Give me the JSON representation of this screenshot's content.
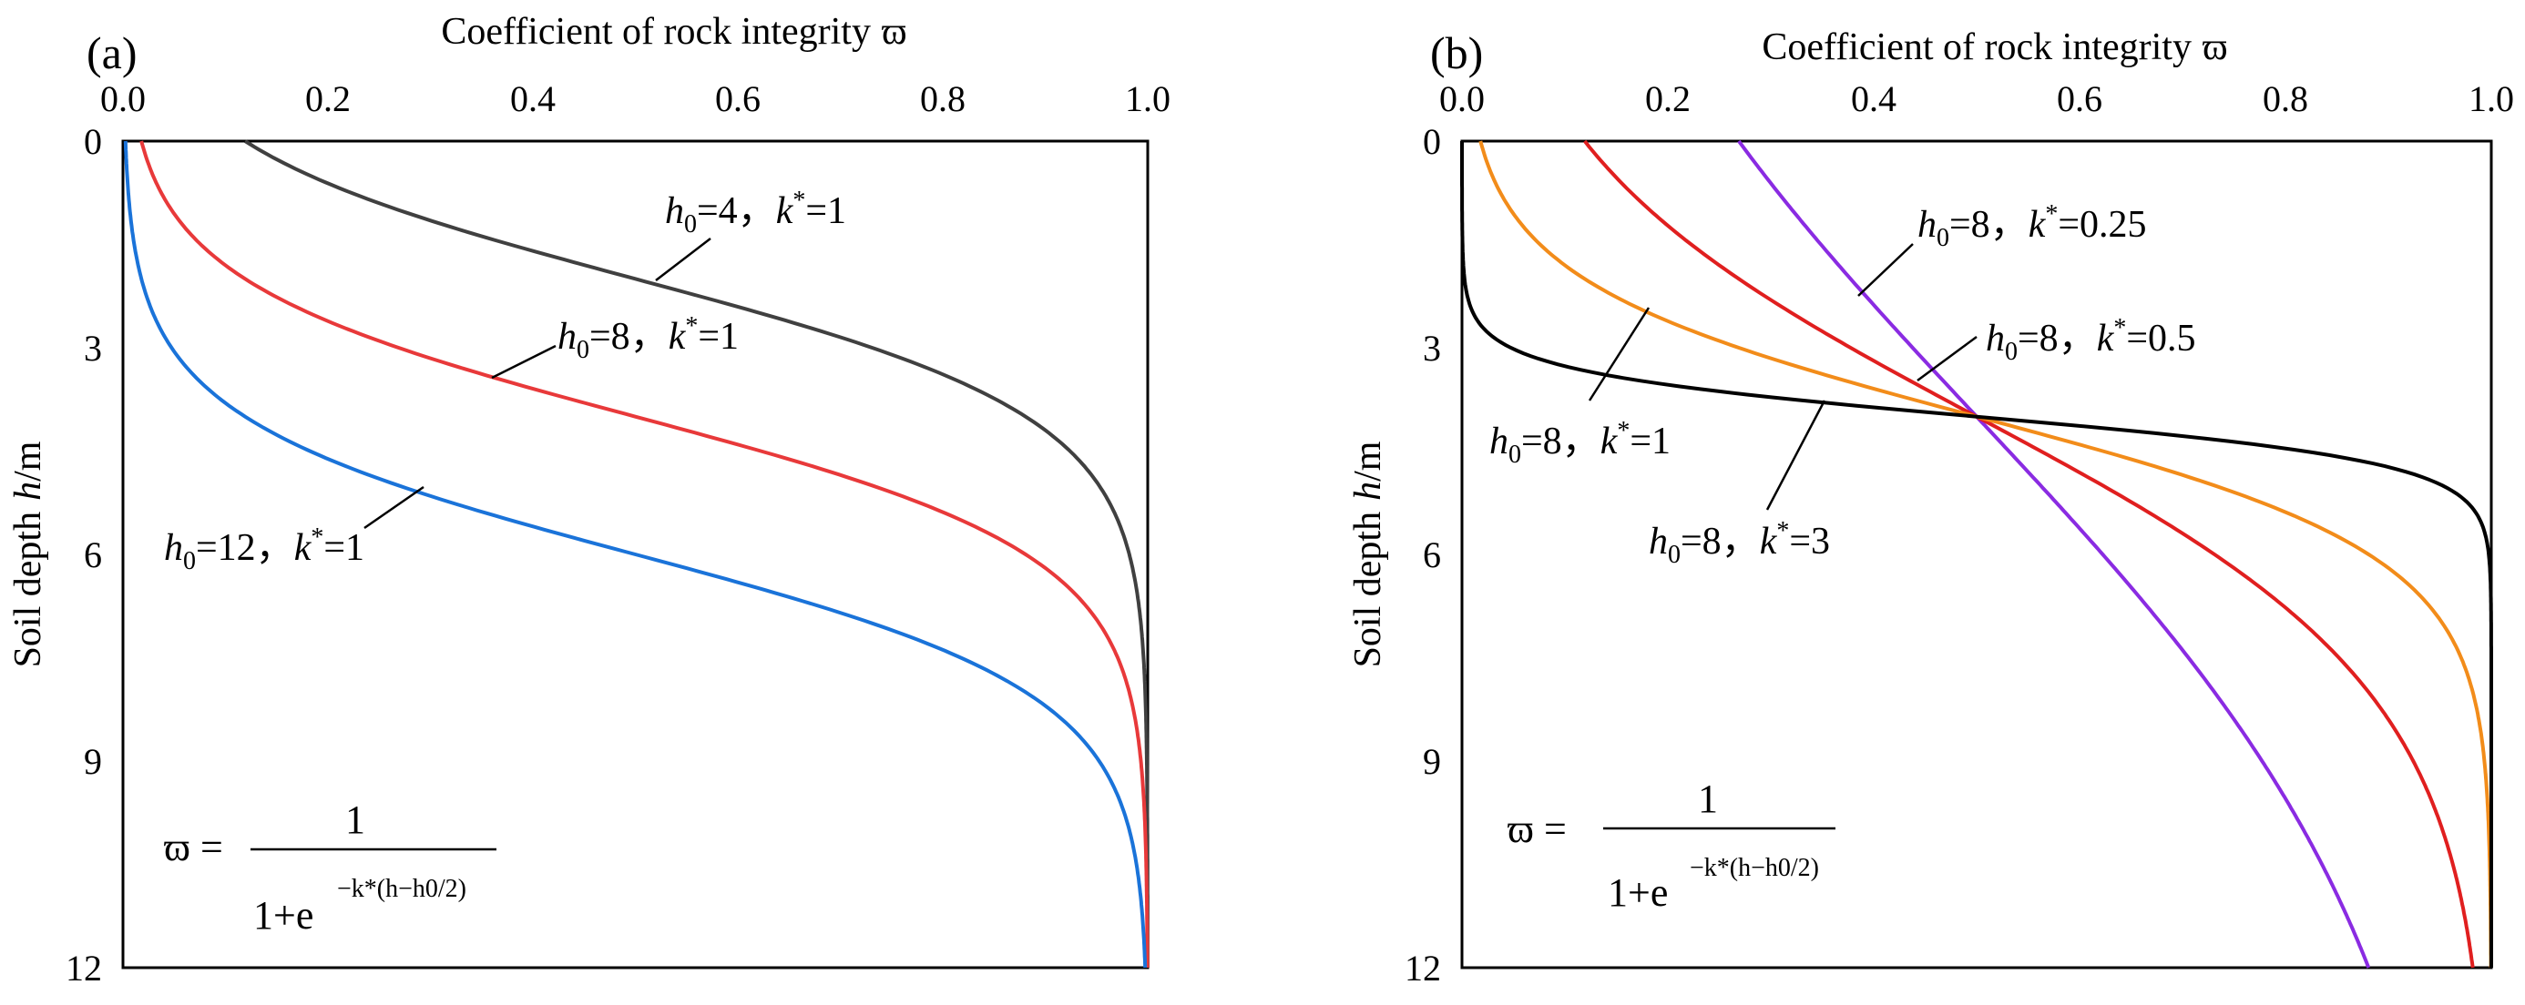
{
  "chart_data": [
    {
      "type": "line",
      "panel_label": "(a)",
      "title": "",
      "xlabel": "Coefficient of rock integrity ϖ",
      "xlabel_text": "Coefficient of rock integrity",
      "xlabel_symbol": "ϖ",
      "ylabel": "Soil depth h/m",
      "ylabel_prefix": "Soil depth",
      "ylabel_var": "h",
      "ylabel_unit": "/m",
      "x_axis_position": "top",
      "y_axis_inverted": true,
      "xlim": [
        0,
        1
      ],
      "ylim": [
        0,
        12
      ],
      "xticks": [
        "0.0",
        "0.2",
        "0.4",
        "0.6",
        "0.8",
        "1.0"
      ],
      "yticks": [
        "0",
        "3",
        "6",
        "9",
        "12"
      ],
      "grid": false,
      "formula": {
        "lhs": "ϖ =",
        "numerator": "1",
        "denominator": "1+e",
        "exponent": "−k*(h−h0/2)"
      },
      "series": [
        {
          "name": "h0=4, k*=1",
          "h0": 4,
          "k": 1,
          "color": "#404040",
          "label": {
            "h": "h",
            "sub": "0",
            "mid": "=4，",
            "k": "k",
            "sup": "*",
            "tail": "=1"
          },
          "points": {
            "h": [
              0,
              1,
              2,
              3,
              4,
              5,
              6,
              8,
              10,
              12
            ],
            "w": [
              0.12,
              0.27,
              0.5,
              0.73,
              0.88,
              0.95,
              0.982,
              0.998,
              1.0,
              1.0
            ]
          }
        },
        {
          "name": "h0=8, k*=1",
          "h0": 8,
          "k": 1,
          "color": "#e8393a",
          "label": {
            "h": "h",
            "sub": "0",
            "mid": "=8，",
            "k": "k",
            "sup": "*",
            "tail": "=1"
          },
          "points": {
            "h": [
              0,
              1,
              2,
              3,
              4,
              5,
              6,
              8,
              10,
              12
            ],
            "w": [
              0.018,
              0.047,
              0.12,
              0.27,
              0.5,
              0.73,
              0.88,
              0.982,
              0.998,
              1.0
            ]
          }
        },
        {
          "name": "h0=12, k*=1",
          "h0": 12,
          "k": 1,
          "color": "#1a73d9",
          "label": {
            "h": "h",
            "sub": "0",
            "mid": "=12，",
            "k": "k",
            "sup": "*",
            "tail": "=1"
          },
          "points": {
            "h": [
              0,
              2,
              4,
              5,
              6,
              7,
              8,
              10,
              12
            ],
            "w": [
              0.002,
              0.018,
              0.12,
              0.27,
              0.5,
              0.73,
              0.88,
              0.982,
              0.998
            ]
          }
        }
      ]
    },
    {
      "type": "line",
      "panel_label": "(b)",
      "title": "",
      "xlabel": "Coefficient of rock integrity ϖ",
      "xlabel_text": "Coefficient of rock integrity",
      "xlabel_symbol": "ϖ",
      "ylabel": "Soil depth h/m",
      "ylabel_prefix": "Soil depth",
      "ylabel_var": "h",
      "ylabel_unit": "/m",
      "x_axis_position": "top",
      "y_axis_inverted": true,
      "xlim": [
        0,
        1
      ],
      "ylim": [
        0,
        12
      ],
      "xticks": [
        "0.0",
        "0.2",
        "0.4",
        "0.6",
        "0.8",
        "1.0"
      ],
      "yticks": [
        "0",
        "3",
        "6",
        "9",
        "12"
      ],
      "grid": false,
      "formula": {
        "lhs": "ϖ =",
        "numerator": "1",
        "denominator": "1+e",
        "exponent": "−k*(h−h0/2)"
      },
      "series": [
        {
          "name": "h0=8, k*=0.25",
          "h0": 8,
          "k": 0.25,
          "color": "#8a2be2",
          "label": {
            "h": "h",
            "sub": "0",
            "mid": "=8，",
            "k": "k",
            "sup": "*",
            "tail": "=0.25"
          },
          "points": {
            "h": [
              0,
              2,
              4,
              6,
              8,
              10,
              12
            ],
            "w": [
              0.269,
              0.378,
              0.5,
              0.622,
              0.731,
              0.818,
              0.881
            ]
          }
        },
        {
          "name": "h0=8, k*=0.5",
          "h0": 8,
          "k": 0.5,
          "color": "#e01f1f",
          "label": {
            "h": "h",
            "sub": "0",
            "mid": "=8，",
            "k": "k",
            "sup": "*",
            "tail": "=0.5"
          },
          "points": {
            "h": [
              0,
              2,
              4,
              6,
              8,
              10,
              12
            ],
            "w": [
              0.119,
              0.269,
              0.5,
              0.731,
              0.881,
              0.953,
              0.982
            ]
          }
        },
        {
          "name": "h0=8, k*=1",
          "h0": 8,
          "k": 1,
          "color": "#f28c1a",
          "label": {
            "h": "h",
            "sub": "0",
            "mid": "=8，",
            "k": "k",
            "sup": "*",
            "tail": "=1"
          },
          "points": {
            "h": [
              0,
              2,
              3,
              4,
              5,
              6,
              8,
              10,
              12
            ],
            "w": [
              0.018,
              0.119,
              0.269,
              0.5,
              0.731,
              0.881,
              0.982,
              0.998,
              1.0
            ]
          }
        },
        {
          "name": "h0=8, k*=3",
          "h0": 8,
          "k": 3,
          "color": "#000000",
          "label": {
            "h": "h",
            "sub": "0",
            "mid": "=8，",
            "k": "k",
            "sup": "*",
            "tail": "=3"
          },
          "points": {
            "h": [
              0,
              2,
              3,
              3.5,
              4,
              4.5,
              5,
              6,
              8,
              12
            ],
            "w": [
              0.0,
              0.002,
              0.047,
              0.182,
              0.5,
              0.818,
              0.953,
              0.998,
              1.0,
              1.0
            ]
          }
        }
      ]
    }
  ]
}
